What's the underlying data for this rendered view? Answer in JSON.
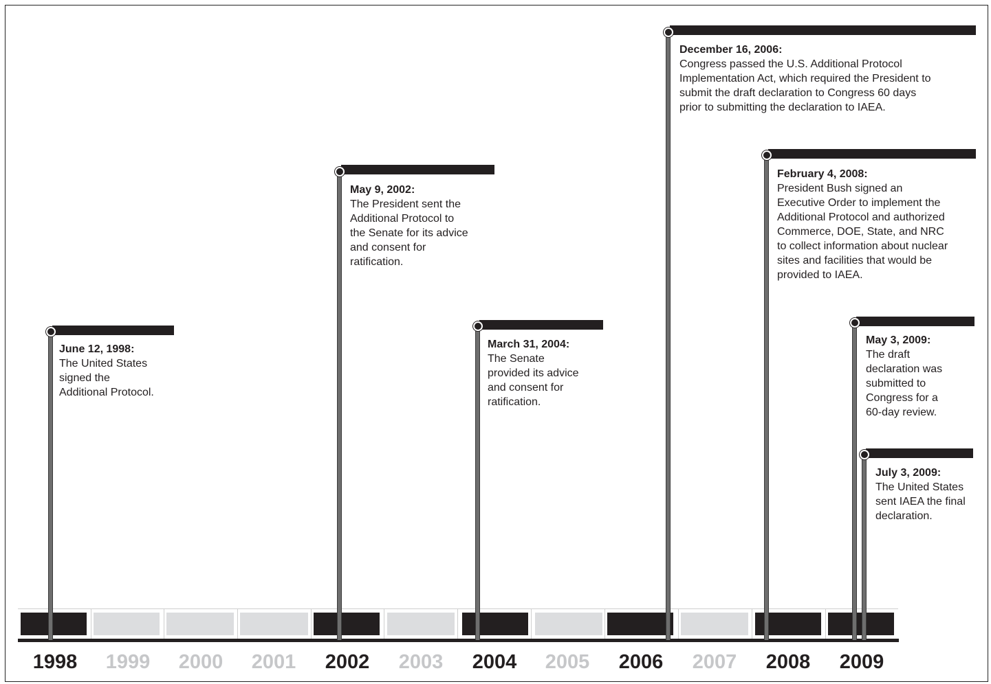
{
  "years": [
    {
      "label": "1998",
      "highlighted": true
    },
    {
      "label": "1999",
      "highlighted": false
    },
    {
      "label": "2000",
      "highlighted": false
    },
    {
      "label": "2001",
      "highlighted": false
    },
    {
      "label": "2002",
      "highlighted": true
    },
    {
      "label": "2003",
      "highlighted": false
    },
    {
      "label": "2004",
      "highlighted": true
    },
    {
      "label": "2005",
      "highlighted": false
    },
    {
      "label": "2006",
      "highlighted": true
    },
    {
      "label": "2007",
      "highlighted": false
    },
    {
      "label": "2008",
      "highlighted": true
    },
    {
      "label": "2009",
      "highlighted": true
    }
  ],
  "events": [
    {
      "date": "June 12, 1998:",
      "description": "The United States\nsigned the\nAdditional Protocol."
    },
    {
      "date": "May 9, 2002:",
      "description": "The President sent the\nAdditional Protocol to\nthe Senate for its advice\nand consent for\nratification."
    },
    {
      "date": "March 31, 2004:",
      "description": "The Senate\nprovided its advice\nand consent for\nratification."
    },
    {
      "date": "December 16, 2006:",
      "description": "Congress passed the U.S. Additional Protocol\nImplementation Act, which required the President to\nsubmit the draft declaration to Congress 60 days\nprior to submitting the declaration to IAEA."
    },
    {
      "date": "February 4, 2008:",
      "description": "President Bush signed an\nExecutive Order to implement the\nAdditional Protocol and authorized\nCommerce, DOE, State, and NRC\nto collect information about nuclear\nsites and facilities that would be\nprovided to IAEA."
    },
    {
      "date": "May 3, 2009:",
      "description": "The draft\ndeclaration was\nsubmitted to\nCongress for a\n60-day review."
    },
    {
      "date": "July 3, 2009:",
      "description": "The United States\nsent IAEA the final\ndeclaration."
    }
  ],
  "colors": {
    "dark": "#231f20",
    "light_cell": "#dcdddf",
    "light_year": "#c6c7c9",
    "pole": "#6e6e6e"
  }
}
